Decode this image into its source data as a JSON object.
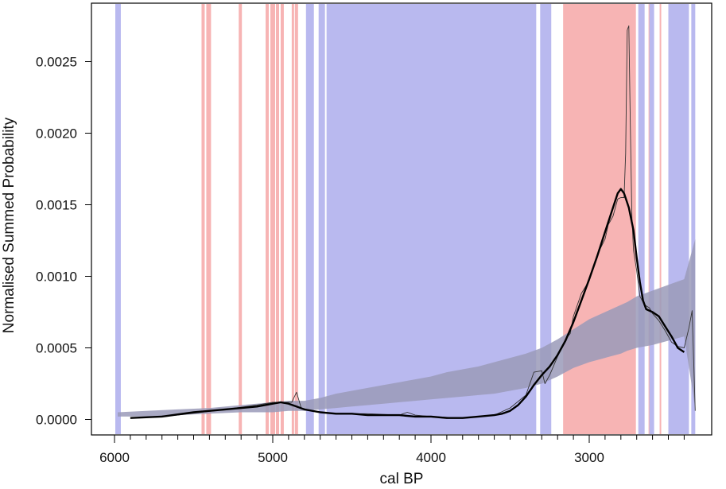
{
  "chart_data": {
    "type": "line",
    "xlabel": "cal BP",
    "ylabel": "Normalised Summed Probability",
    "xlim": [
      6000,
      2300
    ],
    "x_reversed": true,
    "ylim": [
      0,
      0.0026
    ],
    "x_ticks": [
      6000,
      5000,
      4000,
      3000
    ],
    "x_tick_labels": [
      "6000",
      "5000",
      "4000",
      "3000"
    ],
    "y_ticks": [
      0,
      0.0005,
      0.001,
      0.0015,
      0.002,
      0.0025
    ],
    "y_tick_labels": [
      "0.0000",
      "0.0005",
      "0.0010",
      "0.0015",
      "0.0020",
      "0.0025"
    ],
    "grid": false,
    "legend": "none",
    "colors": {
      "positive_deviation": "#f7b4b4",
      "negative_deviation": "#b9b9ef",
      "null_envelope": "#c8c8c8",
      "envelope_overlap": "#9a9ab8",
      "smoothed_line": "#000000",
      "raw_line": "#333333"
    },
    "null_envelope": {
      "x": [
        5980,
        5800,
        5600,
        5400,
        5200,
        5000,
        4900,
        4800,
        4700,
        4600,
        4500,
        4400,
        4300,
        4200,
        4100,
        4000,
        3900,
        3800,
        3700,
        3600,
        3500,
        3400,
        3300,
        3200,
        3100,
        3000,
        2900,
        2800,
        2760,
        2700,
        2600,
        2500,
        2400,
        2330
      ],
      "lower": [
        2e-05,
        2e-05,
        3e-05,
        4e-05,
        5e-05,
        5e-05,
        6e-05,
        6e-05,
        7e-05,
        8e-05,
        9e-05,
        0.0001,
        0.00011,
        0.00012,
        0.00013,
        0.00014,
        0.00015,
        0.00016,
        0.00017,
        0.00018,
        0.0002,
        0.00022,
        0.00025,
        0.0003,
        0.00036,
        0.0004,
        0.00043,
        0.00046,
        0.00048,
        0.0005,
        0.00052,
        0.00055,
        0.00058,
        8e-05
      ],
      "upper": [
        5e-05,
        6e-05,
        7e-05,
        8e-05,
        0.0001,
        0.00012,
        0.00013,
        0.00013,
        0.00015,
        0.00018,
        0.0002,
        0.00022,
        0.00024,
        0.00026,
        0.00028,
        0.0003,
        0.00033,
        0.00035,
        0.00037,
        0.0004,
        0.00043,
        0.00046,
        0.0005,
        0.00056,
        0.00063,
        0.0007,
        0.00075,
        0.0008,
        0.00082,
        0.00086,
        0.0009,
        0.00094,
        0.00098,
        0.00126
      ]
    },
    "observed_smoothed": {
      "x": [
        5900,
        5700,
        5500,
        5300,
        5100,
        5000,
        4950,
        4900,
        4850,
        4800,
        4700,
        4600,
        4500,
        4400,
        4300,
        4200,
        4100,
        4000,
        3900,
        3800,
        3700,
        3600,
        3550,
        3500,
        3450,
        3400,
        3350,
        3300,
        3250,
        3200,
        3150,
        3100,
        3050,
        3000,
        2950,
        2900,
        2850,
        2820,
        2800,
        2780,
        2750,
        2720,
        2700,
        2680,
        2660,
        2640,
        2600,
        2560,
        2520,
        2480,
        2440,
        2400
      ],
      "y": [
        1e-05,
        2e-05,
        5e-05,
        7e-05,
        9e-05,
        0.00011,
        0.00012,
        0.00011,
        9e-05,
        7e-05,
        5e-05,
        4e-05,
        4e-05,
        3e-05,
        3e-05,
        3e-05,
        2e-05,
        2e-05,
        1e-05,
        1e-05,
        2e-05,
        3e-05,
        4e-05,
        6e-05,
        0.0001,
        0.00016,
        0.00024,
        0.00031,
        0.00037,
        0.00045,
        0.00055,
        0.00068,
        0.00083,
        0.00098,
        0.00114,
        0.00131,
        0.00148,
        0.00158,
        0.00161,
        0.00158,
        0.00148,
        0.00132,
        0.00113,
        0.00096,
        0.00083,
        0.00077,
        0.00075,
        0.00072,
        0.00065,
        0.00058,
        0.0005,
        0.00047
      ]
    },
    "observed_raw": {
      "x": [
        5900,
        5600,
        5300,
        5100,
        5000,
        4950,
        4880,
        4850,
        4820,
        4750,
        4600,
        4400,
        4200,
        4150,
        4100,
        4000,
        3800,
        3600,
        3500,
        3400,
        3350,
        3300,
        3280,
        3250,
        3200,
        3150,
        3120,
        3100,
        3050,
        3000,
        2950,
        2900,
        2880,
        2850,
        2820,
        2800,
        2780,
        2770,
        2760,
        2750,
        2740,
        2730,
        2720,
        2700,
        2680,
        2650,
        2620,
        2600,
        2560,
        2520,
        2480,
        2440,
        2400,
        2370,
        2350,
        2330
      ],
      "y": [
        1e-05,
        3e-05,
        7e-05,
        0.0001,
        0.00012,
        0.00012,
        0.00012,
        0.00019,
        8e-05,
        6e-05,
        4e-05,
        4e-05,
        3e-05,
        5e-05,
        3e-05,
        2e-05,
        1e-05,
        3e-05,
        8e-05,
        0.00017,
        0.00033,
        0.00034,
        0.00025,
        0.00031,
        0.00044,
        0.00056,
        0.0006,
        0.00072,
        0.00088,
        0.00097,
        0.00115,
        0.00126,
        0.00136,
        0.00142,
        0.00154,
        0.00155,
        0.00155,
        0.00186,
        0.00272,
        0.00275,
        0.00205,
        0.00141,
        0.00118,
        0.00104,
        0.00086,
        0.0008,
        0.00078,
        0.00074,
        0.00069,
        0.00062,
        0.00054,
        0.00051,
        0.0005,
        0.00064,
        0.00076,
        6e-05
      ]
    },
    "positive_deviation_intervals": [
      [
        5450,
        5430
      ],
      [
        5420,
        5390
      ],
      [
        5215,
        5195
      ],
      [
        5045,
        5025
      ],
      [
        5015,
        4985
      ],
      [
        4980,
        4960
      ],
      [
        4950,
        4930
      ],
      [
        4880,
        4865
      ],
      [
        4860,
        4840
      ],
      [
        3165,
        2705
      ],
      [
        2625,
        2615
      ],
      [
        2555,
        2545
      ]
    ],
    "negative_deviation_intervals": [
      [
        5995,
        5960
      ],
      [
        4790,
        4740
      ],
      [
        4710,
        4670
      ],
      [
        4660,
        3335
      ],
      [
        3310,
        3240
      ],
      [
        2690,
        2650
      ],
      [
        2620,
        2590
      ],
      [
        2500,
        2370
      ],
      [
        2355,
        2330
      ]
    ]
  }
}
